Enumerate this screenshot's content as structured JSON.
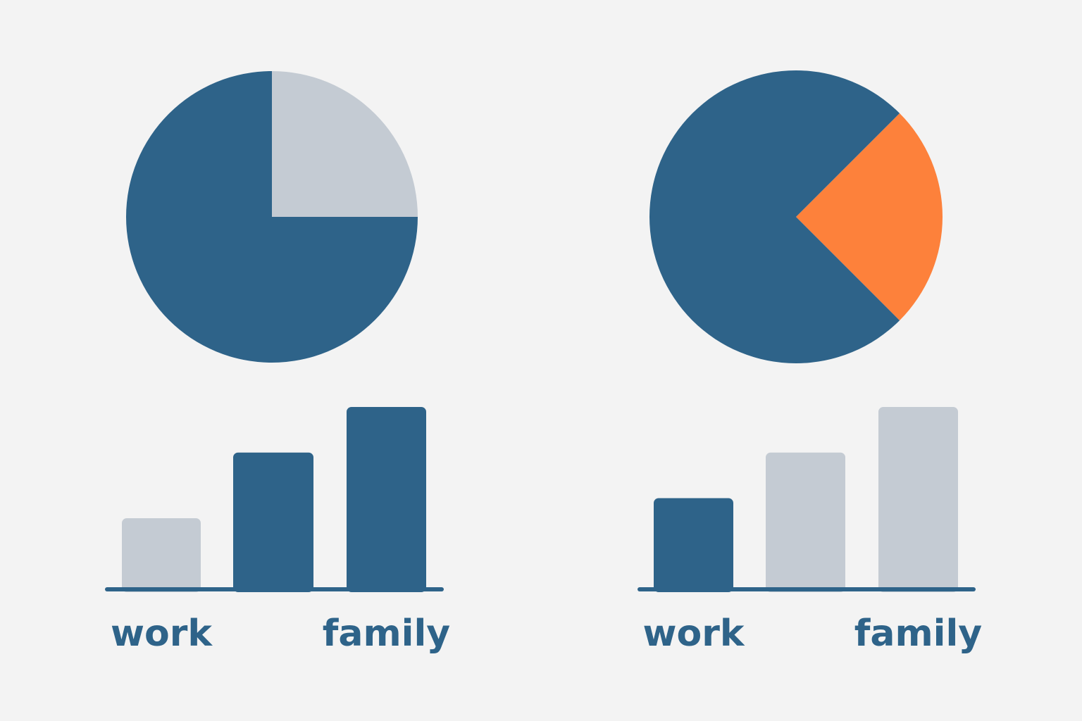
{
  "chart_data": [
    {
      "type": "pie",
      "values": [
        25,
        75
      ],
      "colors": [
        "#c4cbd3",
        "#2e6389"
      ],
      "start_angle": 0
    },
    {
      "type": "bar",
      "categories": [
        "work",
        null,
        "family"
      ],
      "values": [
        39,
        75,
        100
      ],
      "colors": [
        "#c4cbd3",
        "#2e6389",
        "#2e6389"
      ],
      "ylim": [
        0,
        100
      ]
    },
    {
      "type": "pie",
      "values": [
        25,
        75
      ],
      "colors": [
        "#fd813b",
        "#2e6389"
      ],
      "start_angle": 45
    },
    {
      "type": "bar",
      "categories": [
        "work",
        null,
        "family"
      ],
      "values": [
        50,
        75,
        100
      ],
      "colors": [
        "#2e6389",
        "#c4cbd3",
        "#c4cbd3"
      ],
      "ylim": [
        0,
        100
      ]
    }
  ]
}
